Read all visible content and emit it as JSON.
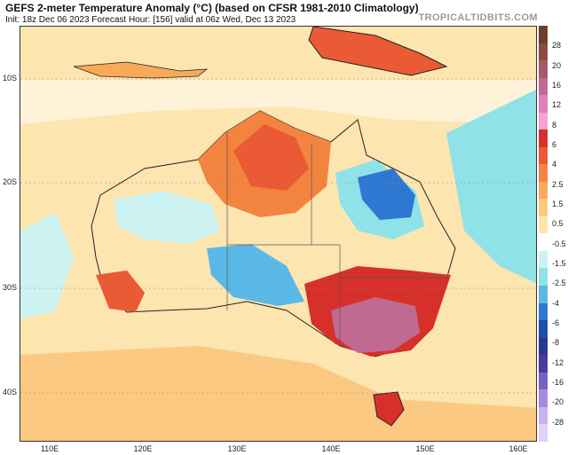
{
  "header": {
    "title": "GEFS 2-meter Temperature Anomaly (°C) (based on CFSR 1981-2010 Climatology)",
    "subtitle": "Init: 18z Dec 06 2023   Forecast Hour: [156]   valid at 06z Wed, Dec 13 2023",
    "brand": "TROPICALTIDBITS.COM"
  },
  "map": {
    "lat_labels": [
      "10S",
      "20S",
      "30S",
      "40S"
    ],
    "lon_labels": [
      "110E",
      "120E",
      "130E",
      "140E",
      "150E",
      "160E"
    ]
  },
  "colorbar": {
    "labels": [
      "28",
      "20",
      "16",
      "12",
      "8",
      "6",
      "4",
      "2.5",
      "1.5",
      "0.5",
      "-0.5",
      "-1.5",
      "-2.5",
      "-4",
      "-6",
      "-8",
      "-12",
      "-16",
      "-20",
      "-28"
    ],
    "colors": [
      "#6b3f2a",
      "#8c4a3f",
      "#a35a6a",
      "#c06a92",
      "#e07fb8",
      "#f4a3d2",
      "#d7302a",
      "#ea5a35",
      "#f3843f",
      "#f8a95a",
      "#fbc982",
      "#fde5b0",
      "#ffffff",
      "#ccf2f2",
      "#8fe3e8",
      "#5ab8e6",
      "#2f78d2",
      "#1c4fa8",
      "#2a3a8a",
      "#4a3a9a",
      "#7a5fc8",
      "#a68ae0",
      "#c8b2ee",
      "#e0d2f6"
    ]
  }
}
